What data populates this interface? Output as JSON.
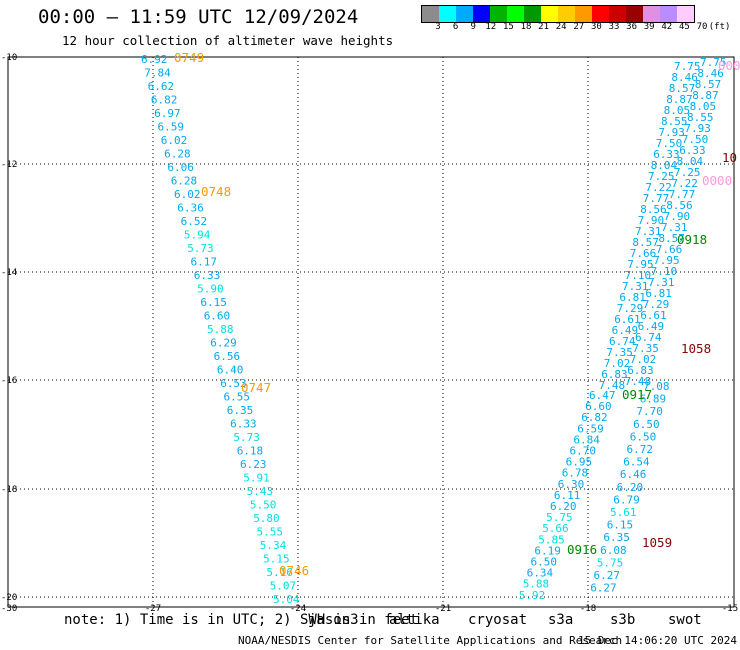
{
  "header": {
    "title": "00:00 – 11:59 UTC 12/09/2024",
    "subtitle": "12 hour collection of altimeter wave heights"
  },
  "colorbar": {
    "colors": [
      "#8c8c8c",
      "#00ffff",
      "#00aaff",
      "#0000ff",
      "#00b400",
      "#00ff00",
      "#009900",
      "#ffff00",
      "#ffcc00",
      "#ff9900",
      "#ff0000",
      "#cc0000",
      "#990000",
      "#e090e0",
      "#b98cff",
      "#ffccff"
    ],
    "ticks": [
      "3",
      "6",
      "9",
      "12",
      "15",
      "18",
      "21",
      "24",
      "27",
      "30",
      "33",
      "36",
      "39",
      "42",
      "45",
      "70",
      "(ft)"
    ]
  },
  "axes": {
    "x_ticks": [
      "-27",
      "-24",
      "-21",
      "-18",
      "-15"
    ],
    "y_ticks": [
      "-10",
      "-12",
      "-14",
      "-16",
      "-18",
      "-20",
      "-30"
    ]
  },
  "tracks": {
    "jason3": {
      "values": [
        "6.92",
        "7.84",
        "6.62",
        "6.82",
        "6.97",
        "6.59",
        "6.02",
        "6.28",
        "6.06",
        "6.28",
        "6.02",
        "6.36",
        "6.52",
        "5.94",
        "5.73",
        "6.17",
        "6.33",
        "5.90",
        "6.15",
        "6.60",
        "5.88",
        "6.29",
        "6.56",
        "6.40",
        "6.53",
        "6.55",
        "6.35",
        "6.33",
        "5.73",
        "6.18",
        "6.23",
        "5.91",
        "5.43",
        "5.50",
        "5.80",
        "5.55",
        "5.34",
        "5.15",
        "5.16",
        "5.07",
        "5.04"
      ],
      "times": [
        "0749",
        "0748",
        "0747",
        "0746"
      ]
    },
    "sat_a": {
      "values": [
        "6.47",
        "6.60",
        "6.82",
        "6.59",
        "6.84",
        "6.70",
        "6.95",
        "6.78",
        "6.30",
        "6.11",
        "6.20",
        "5.75",
        "5.66",
        "5.85",
        "6.19",
        "6.50",
        "6.34",
        "5.88",
        "5.92"
      ],
      "times": [
        "0917",
        "0916"
      ]
    },
    "sat_b": {
      "values": [
        "7.08",
        "6.89",
        "7.70",
        "6.50",
        "6.50",
        "6.72",
        "6.54",
        "6.46",
        "6.20",
        "6.79",
        "5.61",
        "6.15",
        "6.35",
        "6.08",
        "5.75",
        "6.27",
        "6.27"
      ],
      "times": [
        "1059",
        "1058"
      ]
    },
    "extra_times": [
      "0918",
      "10",
      "0000",
      "0000"
    ]
  },
  "footer": {
    "note": "note: 1) Time is in UTC; 2) SWH is in feet",
    "legend": [
      {
        "label": "jason3",
        "color": "#008800"
      },
      {
        "label": "altika",
        "color": "#ff9900"
      },
      {
        "label": "cryosat",
        "color": "#ff0000"
      },
      {
        "label": "s3a",
        "color": "#990000"
      },
      {
        "label": "s3b",
        "color": "#c8b4f0"
      },
      {
        "label": "swot",
        "color": "#ff99dd"
      }
    ],
    "credit": "NOAA/NESDIS Center for Satellite Applications and Research",
    "timestamp": "15 Dec 14:06:20 UTC 2024"
  }
}
